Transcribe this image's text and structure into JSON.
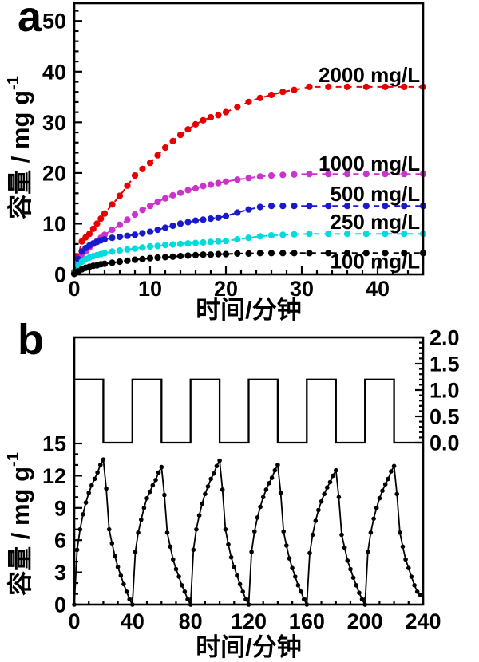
{
  "figure": {
    "background": "#ffffff"
  },
  "chart_data": [
    {
      "id": "a",
      "type": "line",
      "panel_label": "a",
      "title": "",
      "xlabel": "时间/分钟",
      "ylabel": "容量 / mg g",
      "ylabel_superscript": "-1",
      "xlim": [
        0,
        46
      ],
      "ylim": [
        0,
        53.5
      ],
      "grid": false,
      "x_major_ticks": [
        0,
        10,
        20,
        30,
        40
      ],
      "x_minor_step": 2,
      "y_major_ticks": [
        0,
        10,
        20,
        30,
        40,
        50
      ],
      "y_minor_step": 2,
      "legend_position": "inline-right",
      "x": [
        0,
        0.5,
        1,
        1.5,
        2,
        2.5,
        3,
        3.5,
        4,
        5,
        6,
        7,
        8,
        9,
        10,
        11,
        12,
        13,
        14,
        15,
        16,
        17,
        18,
        19,
        20,
        21.5,
        23,
        24.5,
        26,
        27.5,
        29,
        31,
        33.5,
        36,
        38.5,
        41,
        43.5,
        46
      ],
      "series": [
        {
          "name": "2000 mg/L",
          "color": "#e60000",
          "label_xy": [
            45.6,
            39.3
          ],
          "y": [
            0.5,
            3.5,
            6.5,
            7.3,
            8,
            9,
            10,
            11,
            12,
            13.8,
            15.5,
            17.5,
            19.5,
            20.8,
            22,
            23.5,
            25,
            26.3,
            27.5,
            28.6,
            29.6,
            30.4,
            31,
            31.4,
            32,
            33,
            34,
            34.8,
            35.4,
            36,
            36.4,
            37,
            37,
            37,
            37,
            37,
            37,
            37
          ]
        },
        {
          "name": "1000 mg/L",
          "color": "#cc33cc",
          "label_xy": [
            45.6,
            21.9
          ],
          "y": [
            0.3,
            2,
            3.5,
            4.5,
            5.3,
            6,
            6.6,
            7.2,
            7.8,
            8.8,
            9.8,
            10.8,
            11.8,
            12.7,
            13.5,
            14.3,
            15,
            15.6,
            16.1,
            16.6,
            17,
            17.4,
            17.7,
            18,
            18.3,
            18.7,
            19,
            19.3,
            19.5,
            19.6,
            19.7,
            19.8,
            19.8,
            19.8,
            19.8,
            19.8,
            19.8,
            19.8
          ]
        },
        {
          "name": "500 mg/L",
          "color": "#1a1acd",
          "label_xy": [
            45.6,
            15.9
          ],
          "y": [
            0.3,
            3,
            4.5,
            5.2,
            5.7,
            6.1,
            6.4,
            6.7,
            6.9,
            7.2,
            7.4,
            7.6,
            7.8,
            8.1,
            8.4,
            8.8,
            9.2,
            9.6,
            10,
            10.3,
            10.6,
            10.8,
            11,
            11.2,
            11.5,
            12.2,
            12.8,
            13.3,
            13.5,
            13.5,
            13.5,
            13.5,
            13.5,
            13.5,
            13.5,
            13.5,
            13.5,
            13.5
          ]
        },
        {
          "name": "250 mg/L",
          "color": "#00dcdc",
          "label_xy": [
            45.6,
            10.4
          ],
          "y": [
            0.2,
            1.8,
            2.5,
            3,
            3.3,
            3.6,
            3.8,
            4,
            4.2,
            4.5,
            4.7,
            4.9,
            5.1,
            5.3,
            5.5,
            5.6,
            5.8,
            5.9,
            6,
            6.1,
            6.2,
            6.3,
            6.4,
            6.5,
            6.6,
            6.9,
            7.2,
            7.5,
            7.7,
            7.8,
            7.9,
            8,
            8,
            8,
            8,
            8,
            8,
            8
          ]
        },
        {
          "name": "100 mg/L",
          "color": "#000000",
          "label_xy": [
            45.6,
            2.6
          ],
          "y": [
            0.1,
            0.6,
            1,
            1.3,
            1.5,
            1.7,
            1.8,
            2,
            2.1,
            2.3,
            2.5,
            2.7,
            2.9,
            3,
            3.2,
            3.3,
            3.4,
            3.5,
            3.6,
            3.7,
            3.8,
            3.9,
            3.9,
            4,
            4,
            4.1,
            4.1,
            4.2,
            4.2,
            4.2,
            4.2,
            4.2,
            4.2,
            4.2,
            4.2,
            4.2,
            4.2,
            4.2
          ]
        }
      ]
    },
    {
      "id": "b",
      "type": "line",
      "panel_label": "b",
      "title": "",
      "xlabel": "时间/分钟",
      "ylabel_left": "容量 / mg g",
      "ylabel_left_superscript": "-1",
      "xlim": [
        0,
        240
      ],
      "ylim_left": [
        0,
        15
      ],
      "ylim_right": [
        0,
        2
      ],
      "grid": false,
      "x_major_ticks": [
        0,
        40,
        80,
        120,
        160,
        200,
        240
      ],
      "x_minor_step": 10,
      "y_left_major_ticks": [
        0,
        3,
        6,
        9,
        12,
        15
      ],
      "y_left_minor_step": 1,
      "y_right_major_ticks": [
        0,
        0.5,
        1,
        1.5,
        2
      ],
      "y_right_tick_labels": [
        "0.0",
        "0.5",
        "1.0",
        "1.5",
        "2.0"
      ],
      "y_right_minor_step": 0.1,
      "square_wave": {
        "axis": "right",
        "color": "#000000",
        "high": 1.2,
        "low": 0,
        "high_intervals": [
          [
            0,
            20
          ],
          [
            40,
            60
          ],
          [
            80,
            100
          ],
          [
            120,
            140
          ],
          [
            160,
            180
          ],
          [
            200,
            220
          ]
        ],
        "x_end": 240
      },
      "capacity_series": {
        "color": "#000000",
        "x": [
          0,
          2,
          4,
          6,
          8,
          10,
          12,
          14,
          16,
          18,
          20,
          22,
          24,
          26,
          28,
          30,
          32,
          34,
          36,
          38,
          40,
          42,
          44,
          46,
          48,
          50,
          52,
          54,
          56,
          58,
          60,
          62,
          64,
          66,
          68,
          70,
          72,
          74,
          76,
          78,
          80,
          82,
          84,
          86,
          88,
          90,
          92,
          94,
          96,
          98,
          100,
          102,
          104,
          106,
          108,
          110,
          112,
          114,
          116,
          118,
          120,
          122,
          124,
          126,
          128,
          130,
          132,
          134,
          136,
          138,
          140,
          142,
          144,
          146,
          148,
          150,
          152,
          154,
          156,
          158,
          160,
          162,
          164,
          166,
          168,
          170,
          172,
          174,
          176,
          178,
          180,
          182,
          184,
          186,
          188,
          190,
          192,
          194,
          196,
          198,
          200,
          202,
          204,
          206,
          208,
          210,
          212,
          214,
          216,
          218,
          220,
          222,
          224,
          226,
          228,
          230,
          232,
          234,
          236,
          238
        ],
        "y": [
          0,
          5.1,
          7,
          8.4,
          9.5,
          10.4,
          11.1,
          11.7,
          12.3,
          13,
          13.5,
          10.8,
          7,
          5.7,
          4.5,
          3.5,
          2.7,
          1.9,
          1.2,
          0.5,
          0,
          4.9,
          6.7,
          7.9,
          9,
          9.9,
          10.5,
          11.1,
          11.6,
          12.3,
          12.8,
          10.2,
          6.7,
          5.4,
          4.2,
          3.3,
          2.6,
          1.8,
          1.2,
          0.5,
          0,
          5.1,
          7,
          8.3,
          9.4,
          10.3,
          11,
          11.7,
          12.2,
          12.9,
          13.4,
          10.7,
          7,
          5.6,
          4.4,
          3.5,
          2.7,
          1.9,
          1.2,
          0.5,
          0,
          4.9,
          6.8,
          8.1,
          9.1,
          10,
          10.7,
          11.3,
          11.8,
          12.5,
          13,
          10.4,
          6.8,
          5.5,
          4.3,
          3.4,
          2.6,
          1.8,
          1.2,
          0.5,
          0,
          4.8,
          6.5,
          7.8,
          8.8,
          9.6,
          10.3,
          10.9,
          11.4,
          12,
          12.5,
          10,
          6.5,
          5.3,
          4.1,
          3.3,
          2.5,
          1.8,
          1.1,
          0.5,
          0,
          4.9,
          6.7,
          8,
          9,
          9.9,
          10.6,
          11.2,
          11.7,
          12.4,
          12.9,
          10.3,
          6.7,
          5.4,
          4.2,
          3.4,
          2.6,
          1.8,
          1.2,
          0.9
        ]
      }
    }
  ]
}
